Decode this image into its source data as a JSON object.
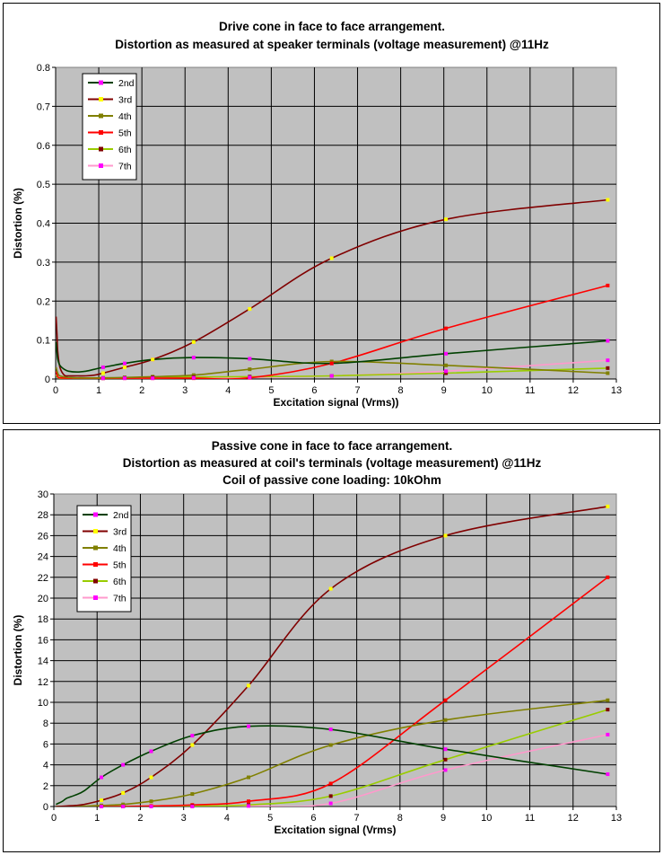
{
  "chart_data": [
    {
      "type": "line",
      "title": [
        "Drive cone in face to face arrangement.",
        "Distortion as measured at speaker terminals (voltage measurement) @11Hz"
      ],
      "xlabel": "Excitation signal (Vrms))",
      "ylabel": "Distortion (%)",
      "xlim": [
        0,
        13
      ],
      "ylim": [
        0,
        0.8
      ],
      "xticks": [
        0,
        1,
        2,
        3,
        4,
        5,
        6,
        7,
        8,
        9,
        10,
        11,
        12,
        13
      ],
      "yticks": [
        0,
        0.1,
        0.2,
        0.3,
        0.4,
        0.5,
        0.6,
        0.7,
        0.8
      ],
      "ytick_labels": [
        "0",
        "0.1",
        "0.2",
        "0.3",
        "0.4",
        "0.5",
        "0.6",
        "0.7",
        "0.8"
      ],
      "grid": true,
      "legend": "top-left",
      "series": [
        {
          "name": "2nd",
          "color": "#004000",
          "marker": "#ff00ff",
          "x": [
            0.01,
            0.03,
            0.05,
            0.1,
            0.2,
            0.3,
            0.5,
            0.7,
            0.9,
            1.1,
            1.6,
            2.25,
            3.2,
            4.5,
            6.4,
            9.05,
            12.8
          ],
          "y": [
            0.095,
            0.07,
            0.05,
            0.035,
            0.025,
            0.02,
            0.018,
            0.02,
            0.025,
            0.03,
            0.04,
            0.05,
            0.055,
            0.052,
            0.04,
            0.065,
            0.098
          ]
        },
        {
          "name": "3rd",
          "color": "#800000",
          "marker": "#ffff00",
          "x": [
            0.01,
            0.03,
            0.05,
            0.1,
            0.2,
            0.3,
            0.5,
            0.7,
            0.9,
            1.1,
            1.6,
            2.25,
            3.2,
            4.5,
            6.4,
            9.05,
            12.8
          ],
          "y": [
            0.16,
            0.12,
            0.07,
            0.03,
            0.01,
            0.008,
            0.008,
            0.008,
            0.01,
            0.015,
            0.03,
            0.05,
            0.095,
            0.18,
            0.31,
            0.41,
            0.46
          ]
        },
        {
          "name": "4th",
          "color": "#808000",
          "marker": "#808000",
          "x": [
            0.01,
            0.05,
            0.1,
            0.3,
            0.5,
            1.1,
            1.6,
            2.25,
            3.2,
            4.5,
            6.4,
            9.05,
            12.8
          ],
          "y": [
            0.03,
            0.015,
            0.008,
            0.004,
            0.003,
            0.003,
            0.004,
            0.006,
            0.01,
            0.025,
            0.045,
            0.035,
            0.015
          ]
        },
        {
          "name": "5th",
          "color": "#ff0000",
          "marker": "#ff0000",
          "x": [
            0.01,
            0.05,
            0.1,
            0.3,
            0.5,
            1.1,
            1.6,
            2.25,
            3.2,
            4.5,
            6.4,
            9.05,
            12.8
          ],
          "y": [
            0.02,
            0.006,
            0.003,
            0.002,
            0.002,
            0.002,
            0.002,
            0.002,
            0.002,
            0.003,
            0.04,
            0.13,
            0.24
          ]
        },
        {
          "name": "6th",
          "color": "#99cc00",
          "marker": "#800000",
          "x": [
            0.01,
            0.05,
            0.1,
            0.3,
            0.5,
            1.1,
            1.6,
            2.25,
            3.2,
            4.5,
            6.4,
            9.05,
            12.8
          ],
          "y": [
            0.01,
            0.004,
            0.002,
            0.002,
            0.002,
            0.002,
            0.003,
            0.004,
            0.005,
            0.006,
            0.008,
            0.015,
            0.028
          ]
        },
        {
          "name": "7th",
          "color": "#ff99cc",
          "marker": "#ff00ff",
          "x": [
            0.01,
            0.05,
            0.1,
            0.3,
            0.5,
            1.1,
            1.6,
            2.25,
            3.2,
            4.5,
            6.4,
            9.05,
            12.8
          ],
          "y": [
            0.012,
            0.004,
            0.002,
            0.002,
            0.002,
            0.002,
            0.002,
            0.002,
            0.003,
            0.004,
            0.008,
            0.02,
            0.048
          ]
        }
      ]
    },
    {
      "type": "line",
      "title": [
        "Passive cone in face to face arrangement.",
        "Distortion as measured at coil's terminals (voltage measurement) @11Hz",
        "Coil of passive cone loading: 10kOhm"
      ],
      "xlabel": "Excitation signal (Vrms)",
      "ylabel": "Distortion (%)",
      "xlim": [
        0,
        13
      ],
      "ylim": [
        0,
        30
      ],
      "xticks": [
        0,
        1,
        2,
        3,
        4,
        5,
        6,
        7,
        8,
        9,
        10,
        11,
        12,
        13
      ],
      "yticks": [
        0,
        2,
        4,
        6,
        8,
        10,
        12,
        14,
        16,
        18,
        20,
        22,
        24,
        26,
        28,
        30
      ],
      "ytick_labels": [
        "0",
        "2",
        "4",
        "6",
        "8",
        "10",
        "12",
        "14",
        "16",
        "18",
        "20",
        "22",
        "24",
        "26",
        "28",
        "30"
      ],
      "grid": true,
      "legend": "top-left",
      "series": [
        {
          "name": "2nd",
          "color": "#004000",
          "marker": "#ff00ff",
          "x": [
            0.05,
            0.1,
            0.2,
            0.3,
            0.5,
            0.7,
            1.1,
            1.6,
            2.25,
            3.2,
            4.5,
            6.4,
            9.05,
            12.8
          ],
          "y": [
            0.2,
            0.3,
            0.5,
            0.8,
            1.1,
            1.5,
            2.8,
            4.0,
            5.3,
            6.8,
            7.7,
            7.4,
            5.5,
            3.1
          ]
        },
        {
          "name": "3rd",
          "color": "#800000",
          "marker": "#ffff00",
          "x": [
            0.05,
            0.1,
            0.3,
            0.5,
            0.7,
            1.1,
            1.6,
            2.25,
            3.2,
            4.5,
            6.4,
            9.05,
            12.8
          ],
          "y": [
            0,
            0,
            0.05,
            0.1,
            0.2,
            0.6,
            1.3,
            2.8,
            5.9,
            11.6,
            20.9,
            26.0,
            28.8
          ]
        },
        {
          "name": "4th",
          "color": "#808000",
          "marker": "#808000",
          "x": [
            0.05,
            0.5,
            1.1,
            1.6,
            2.25,
            3.2,
            4.5,
            6.4,
            9.05,
            12.8
          ],
          "y": [
            0,
            0,
            0.1,
            0.2,
            0.5,
            1.2,
            2.8,
            5.9,
            8.3,
            10.2
          ]
        },
        {
          "name": "5th",
          "color": "#ff0000",
          "marker": "#ff0000",
          "x": [
            0.05,
            0.5,
            1.1,
            1.6,
            2.25,
            3.2,
            4.5,
            6.4,
            9.05,
            12.8
          ],
          "y": [
            0,
            0,
            0,
            0,
            0.05,
            0.15,
            0.5,
            2.2,
            10.2,
            22.0
          ]
        },
        {
          "name": "6th",
          "color": "#99cc00",
          "marker": "#800000",
          "x": [
            0.05,
            0.5,
            1.1,
            1.6,
            2.25,
            3.2,
            4.5,
            6.4,
            9.05,
            12.8
          ],
          "y": [
            0,
            0,
            0,
            0,
            0,
            0.05,
            0.15,
            1.0,
            4.5,
            9.3
          ]
        },
        {
          "name": "7th",
          "color": "#ff99cc",
          "marker": "#ff00ff",
          "x": [
            0.05,
            0.5,
            1.1,
            1.6,
            2.25,
            3.2,
            4.5,
            6.4,
            9.05,
            12.8
          ],
          "y": [
            0,
            0,
            0,
            0,
            0,
            0,
            0.05,
            0.3,
            3.5,
            6.9
          ]
        }
      ]
    }
  ]
}
